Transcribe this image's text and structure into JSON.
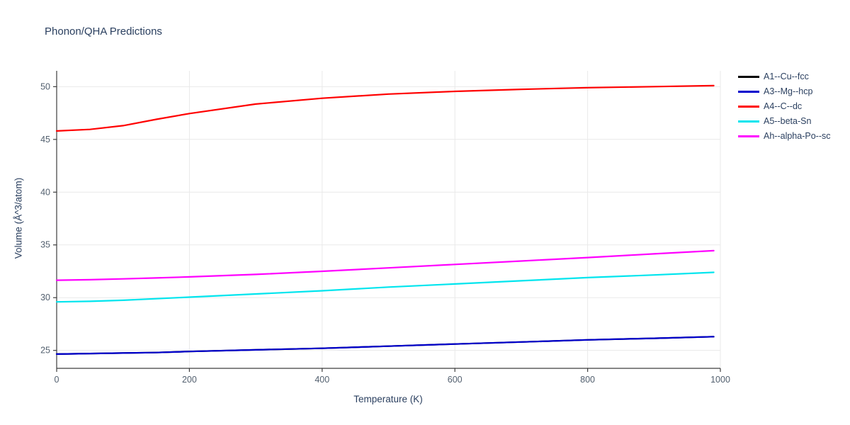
{
  "title": "Phonon/QHA Predictions",
  "style": {
    "text_color": "#2a3f5f",
    "tick_color": "#53606f",
    "grid_color": "#e9e9e9",
    "spine_color": "#3d3d3d",
    "background": "#ffffff"
  },
  "chart_data": {
    "type": "line",
    "title": "Phonon/QHA Predictions",
    "xlabel": "Temperature (K)",
    "ylabel": "Volume (Å^3/atom)",
    "xlim": [
      0,
      1000
    ],
    "ylim": [
      23.3,
      51.5
    ],
    "x_ticks": [
      0,
      200,
      400,
      600,
      800,
      1000
    ],
    "y_ticks": [
      25,
      30,
      35,
      40,
      45,
      50
    ],
    "grid": true,
    "legend_position": "outside-top-right",
    "x": [
      0,
      50,
      100,
      150,
      200,
      300,
      400,
      500,
      600,
      700,
      800,
      900,
      990
    ],
    "series": [
      {
        "name": "A1--Cu--fcc",
        "color": "#000000",
        "values": [
          24.65,
          24.7,
          24.75,
          24.8,
          24.9,
          25.05,
          25.2,
          25.4,
          25.6,
          25.8,
          26.0,
          26.15,
          26.3
        ]
      },
      {
        "name": "A3--Mg--hcp",
        "color": "#0000cd",
        "values": [
          24.65,
          24.7,
          24.75,
          24.8,
          24.9,
          25.05,
          25.2,
          25.4,
          25.6,
          25.8,
          26.0,
          26.15,
          26.3
        ]
      },
      {
        "name": "A4--C--dc",
        "color": "#ff0000",
        "values": [
          45.8,
          45.95,
          46.3,
          46.9,
          47.45,
          48.35,
          48.9,
          49.3,
          49.55,
          49.75,
          49.9,
          50.0,
          50.1
        ]
      },
      {
        "name": "A5--beta-Sn",
        "color": "#00e5ee",
        "values": [
          29.6,
          29.65,
          29.75,
          29.9,
          30.05,
          30.35,
          30.65,
          31.0,
          31.3,
          31.6,
          31.9,
          32.15,
          32.4
        ]
      },
      {
        "name": "Ah--alpha-Po--sc",
        "color": "#ff00ff",
        "values": [
          31.65,
          31.7,
          31.78,
          31.87,
          31.97,
          32.2,
          32.5,
          32.82,
          33.15,
          33.47,
          33.8,
          34.15,
          34.45
        ]
      }
    ]
  }
}
